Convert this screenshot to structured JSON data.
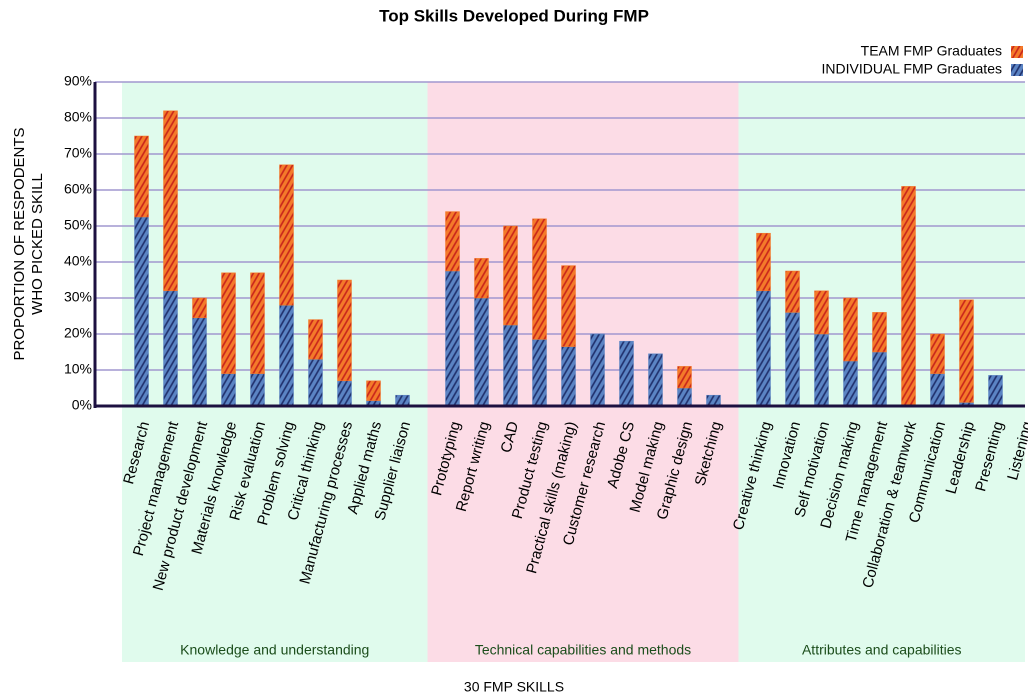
{
  "chart_data": {
    "type": "stacked_bar",
    "title": "Top Skills Developed During FMP",
    "ylabel": [
      "PROPORTION OF RESPODENTS",
      "WHO PICKED SKILL"
    ],
    "xlabel": "30 FMP SKILLS",
    "groups": [
      {
        "name": "Knowledge and understanding",
        "color": "#e0fbed",
        "categories": [
          "Research",
          "Project management",
          "New product development",
          "Materials knowledge",
          "Risk evaluation",
          "Problem solving",
          "Critical thinking",
          "Manufacturing processes",
          "Applied maths",
          "Supplier liaison"
        ]
      },
      {
        "name": "Technical capabilities and methods",
        "color": "#fcdce6",
        "categories": [
          "Prototyping",
          "Report writing",
          "CAD",
          "Product testing",
          "Practical skills (making)",
          "Customer research",
          "Adobe CS",
          "Model making",
          "Graphic design",
          "Sketching"
        ]
      },
      {
        "name": "Attributes and capabilities",
        "color": "#e0fbed",
        "categories": [
          "Creative thinking",
          "Innovation",
          "Self motivation",
          "Decision making",
          "Time management",
          "Collaboration & teamwork",
          "Communication",
          "Leadership",
          "Presenting",
          "Listening"
        ]
      }
    ],
    "series": [
      {
        "name": "INDIVIDUAL FMP Graduates",
        "color": "#5b84c4",
        "hatch": "#1f2f6b",
        "values": [
          52.5,
          32,
          24.5,
          9,
          9,
          28,
          13,
          7,
          1.5,
          3,
          37.5,
          30,
          22.5,
          18.5,
          16.5,
          20,
          18,
          14.5,
          5,
          3,
          32,
          26,
          20,
          12.5,
          15,
          0,
          9,
          1,
          8.5,
          0
        ]
      },
      {
        "name": "TEAM FMP Graduates",
        "color": "#f47a2a",
        "hatch": "#c8231b",
        "values": [
          22.5,
          50,
          5.5,
          28,
          28,
          39,
          11,
          28,
          5.5,
          0,
          16.5,
          11,
          27.5,
          33.5,
          22.5,
          0,
          0,
          0,
          6,
          0,
          16,
          11.5,
          12,
          17.5,
          11,
          61,
          11,
          28.5,
          0,
          0
        ]
      }
    ],
    "ylim": [
      0,
      90
    ],
    "yticks": [
      {
        "value": 0,
        "label": "0%"
      },
      {
        "value": 10,
        "label": "10%"
      },
      {
        "value": 20,
        "label": "20%"
      },
      {
        "value": 30,
        "label": "30%"
      },
      {
        "value": 40,
        "label": "40%"
      },
      {
        "value": 50,
        "label": "50%"
      },
      {
        "value": 60,
        "label": "60%"
      },
      {
        "value": 70,
        "label": "70%"
      },
      {
        "value": 80,
        "label": "80%"
      },
      {
        "value": 90,
        "label": "90%"
      }
    ],
    "grid": true,
    "legend": "top-right"
  }
}
